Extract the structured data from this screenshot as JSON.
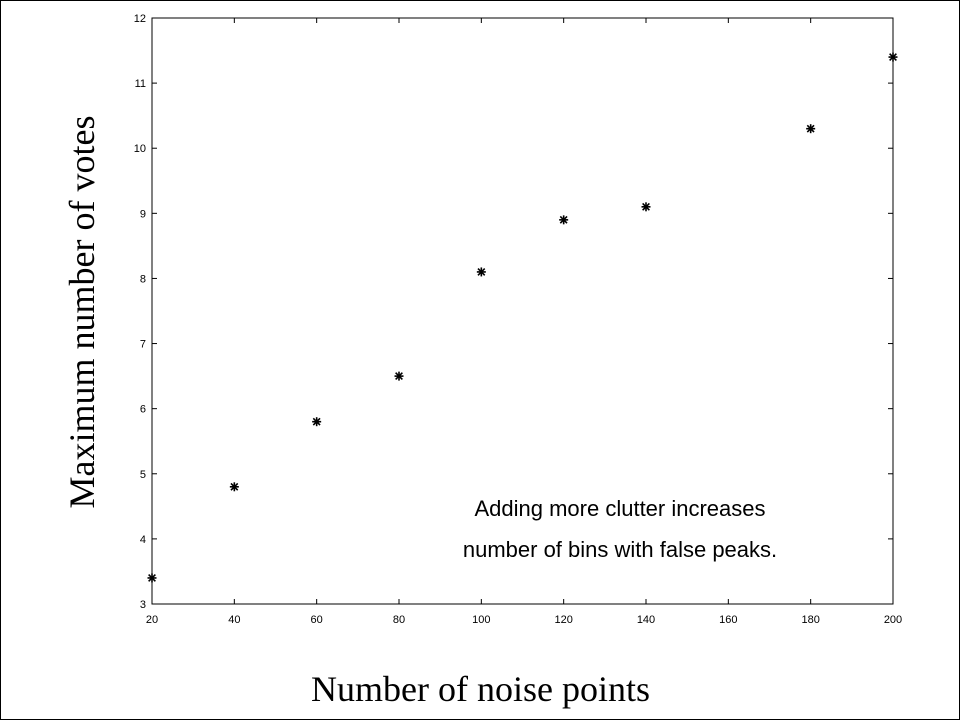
{
  "chart_data": {
    "type": "scatter",
    "title": "",
    "xlabel": "Number of noise points",
    "ylabel": "Maximum number of votes",
    "xlim": [
      20,
      200
    ],
    "ylim": [
      3,
      12
    ],
    "xticks": [
      "20",
      "40",
      "60",
      "80",
      "100",
      "120",
      "140",
      "160",
      "180",
      "200"
    ],
    "yticks": [
      "3",
      "4",
      "5",
      "6",
      "7",
      "8",
      "9",
      "10",
      "11",
      "12"
    ],
    "grid": false,
    "marker": "asterisk",
    "series": [
      {
        "x": [
          20,
          40,
          60,
          80,
          100,
          120,
          140,
          180,
          200
        ],
        "y": [
          3.4,
          4.8,
          5.8,
          6.5,
          8.1,
          8.9,
          9.1,
          10.3,
          11.4
        ]
      }
    ],
    "annotation": {
      "lines": [
        "Adding more clutter increases",
        "number of bins with false peaks."
      ]
    }
  }
}
